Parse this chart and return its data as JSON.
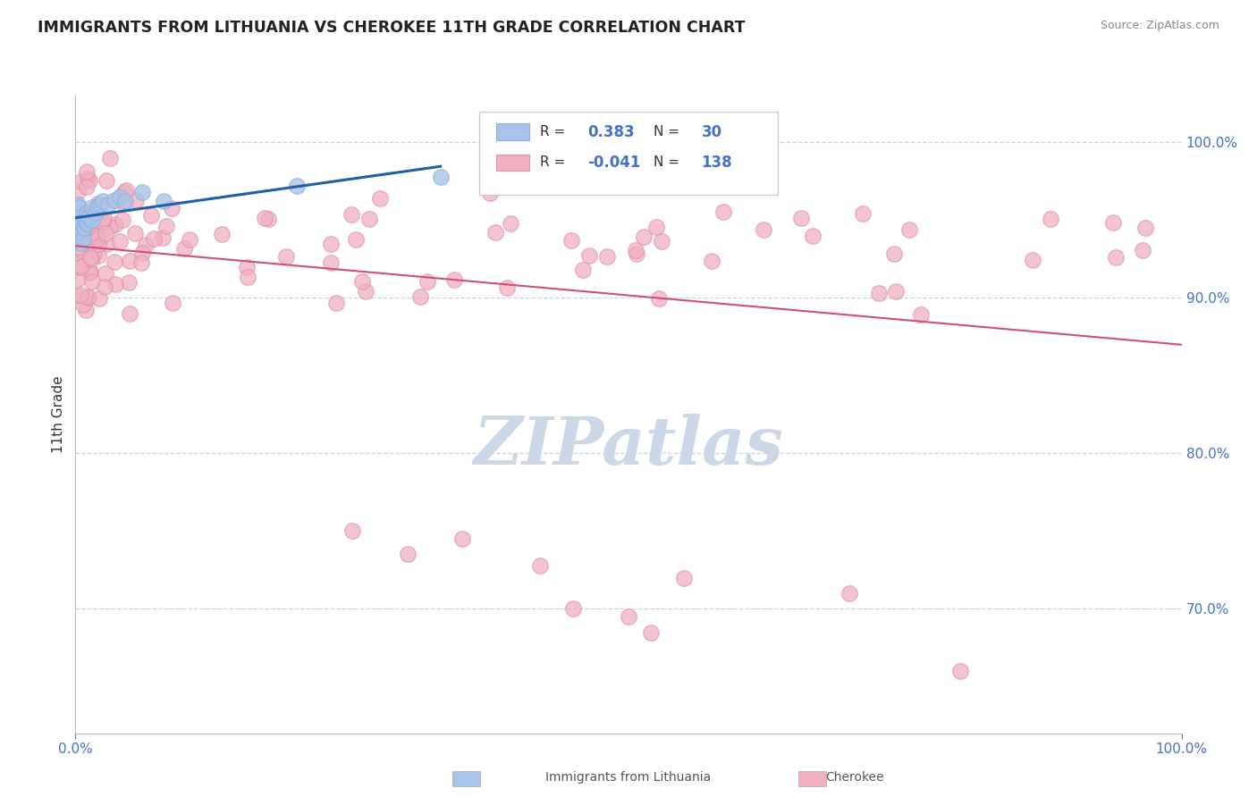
{
  "title": "IMMIGRANTS FROM LITHUANIA VS CHEROKEE 11TH GRADE CORRELATION CHART",
  "source_text": "Source: ZipAtlas.com",
  "ylabel": "11th Grade",
  "y_tick_labels": [
    "70.0%",
    "80.0%",
    "90.0%",
    "100.0%"
  ],
  "y_tick_positions": [
    0.7,
    0.8,
    0.9,
    1.0
  ],
  "xlim": [
    0.0,
    1.0
  ],
  "ylim": [
    0.62,
    1.03
  ],
  "legend_R_blue": "0.383",
  "legend_N_blue": "30",
  "legend_R_pink": "-0.041",
  "legend_N_pink": "138",
  "blue_color": "#a8c4e8",
  "pink_color": "#f0b0c0",
  "blue_edge_color": "#90b0d8",
  "pink_edge_color": "#e090a8",
  "blue_line_color": "#2060a8",
  "pink_line_color": "#d05070",
  "watermark_color": "#ccd8e8",
  "title_color": "#222222",
  "axis_label_color": "#4472c4",
  "grid_color": "#c8d4e4",
  "background_color": "#ffffff"
}
